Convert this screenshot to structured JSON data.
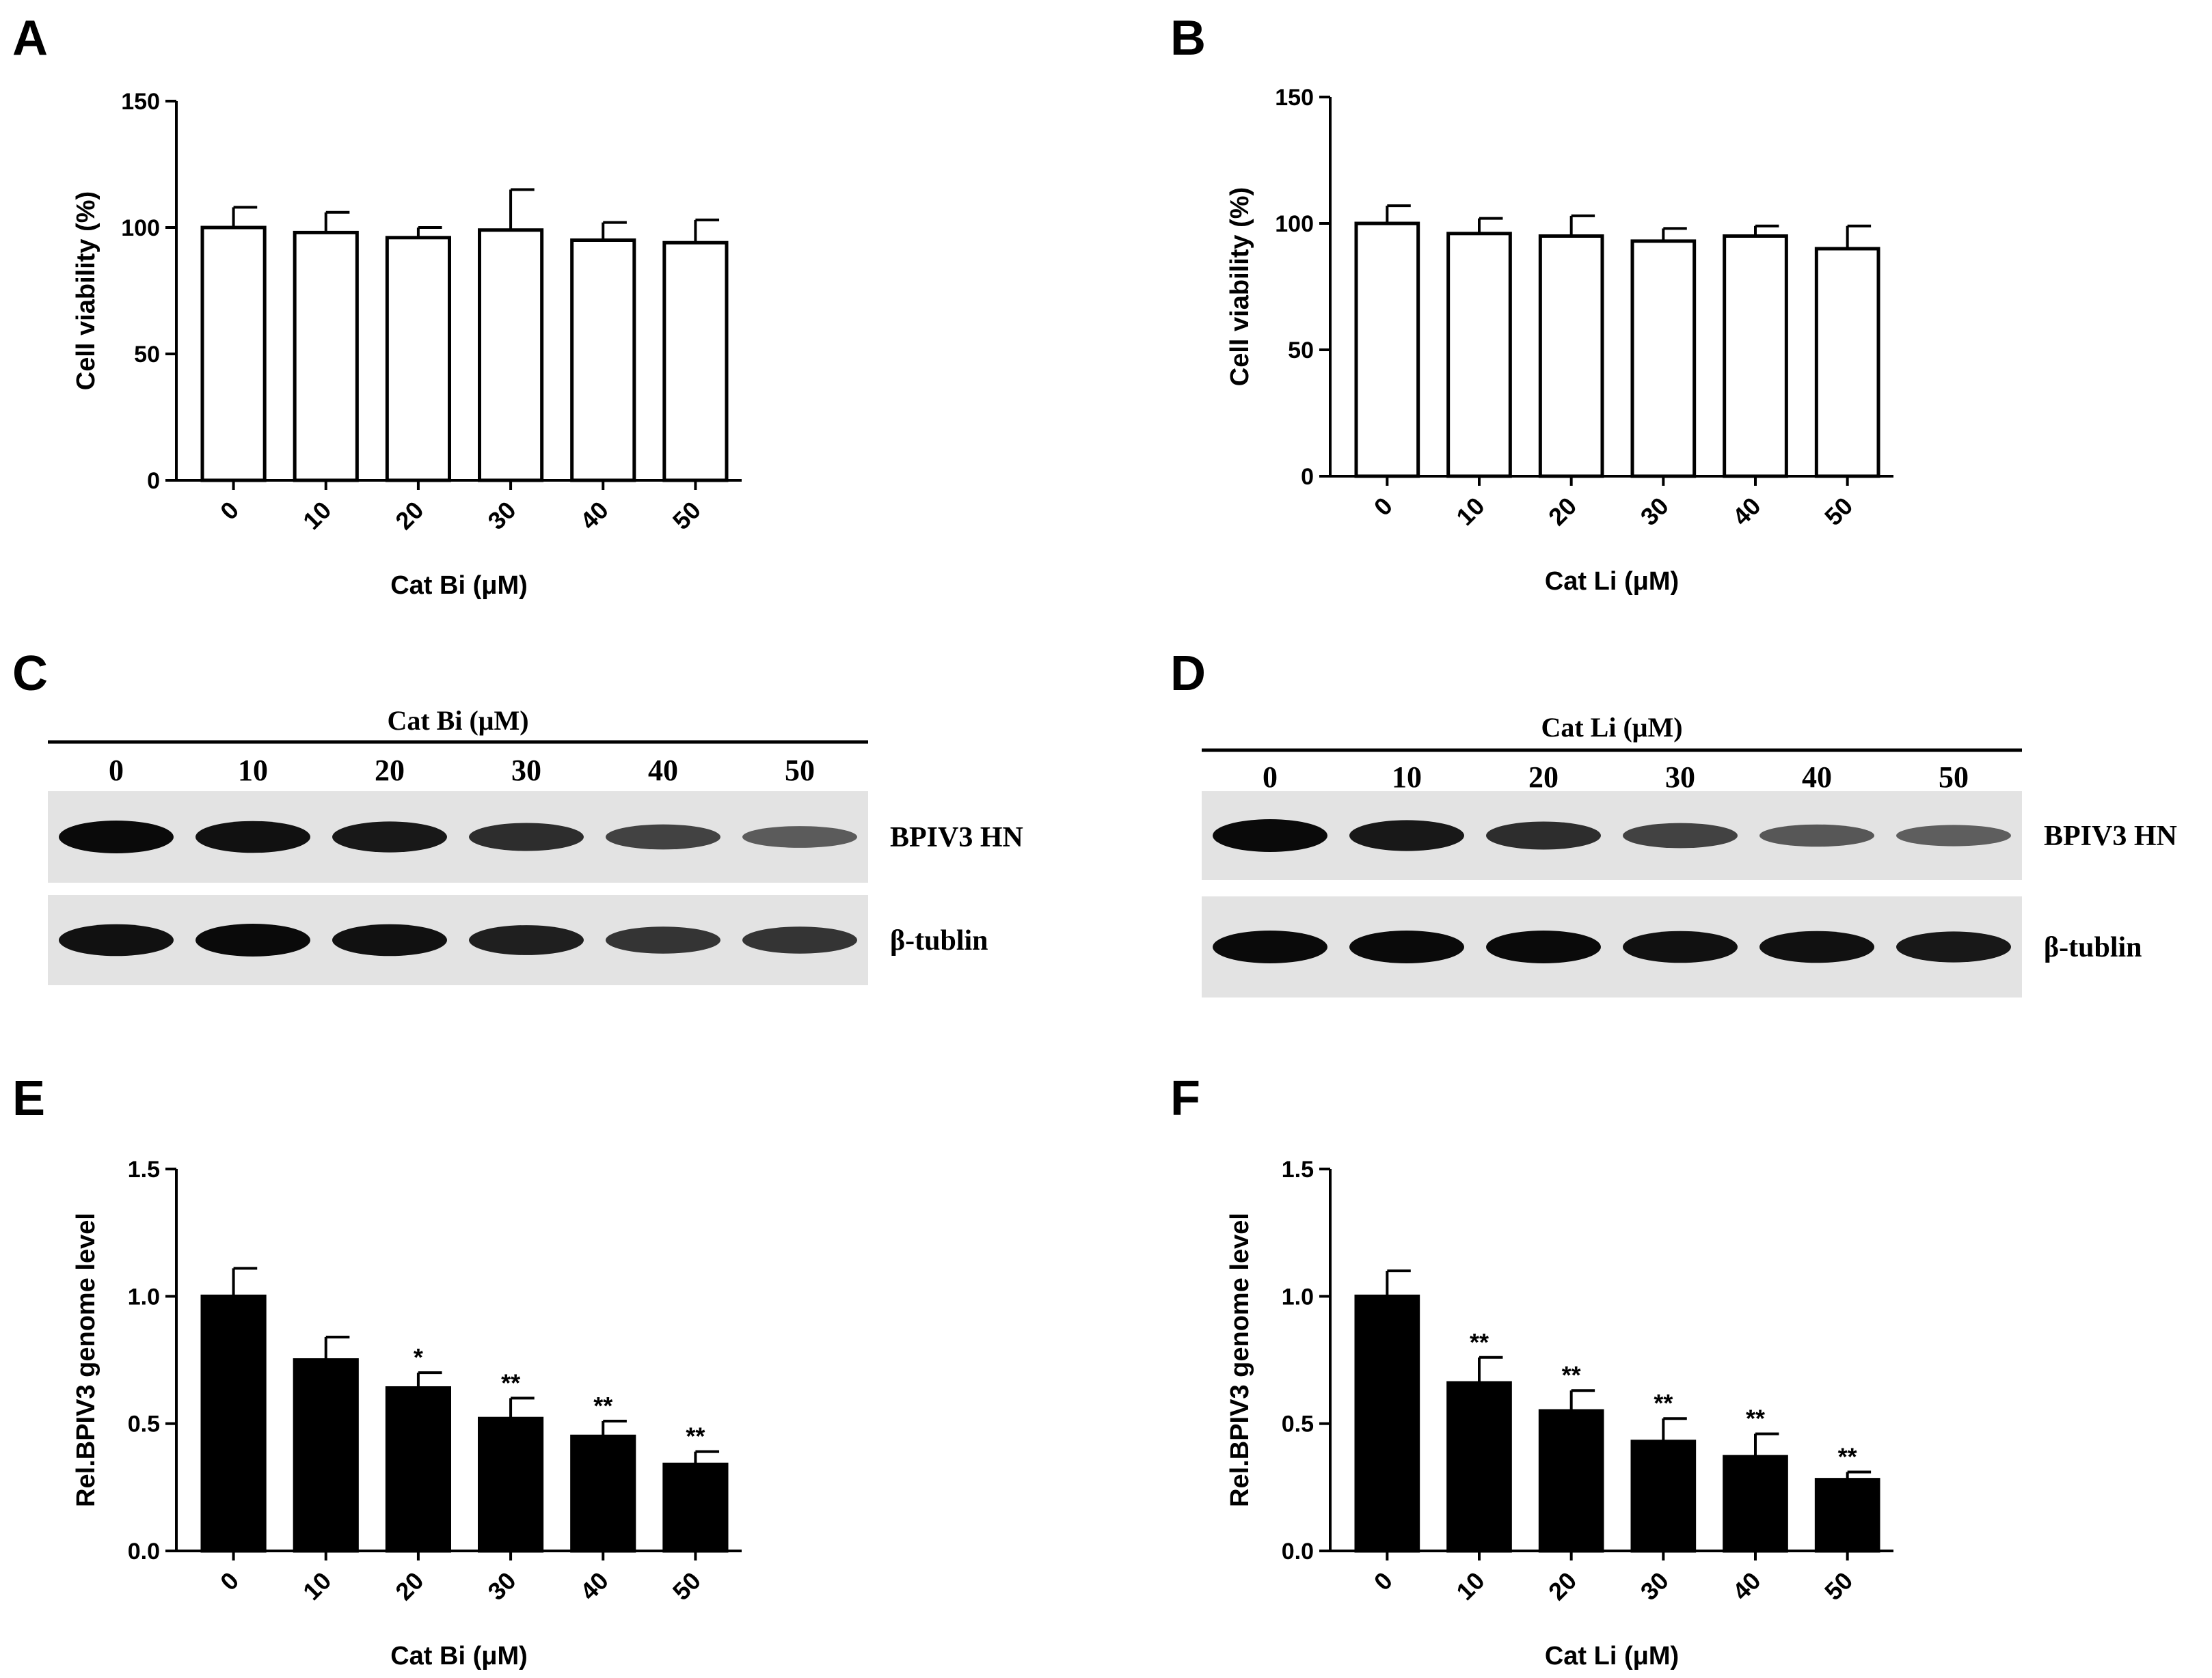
{
  "figure": {
    "panel_letters": [
      "A",
      "B",
      "C",
      "D",
      "E",
      "F"
    ]
  },
  "chart_data": [
    {
      "panel": "A",
      "type": "bar",
      "categories": [
        "0",
        "10",
        "20",
        "30",
        "40",
        "50"
      ],
      "values": [
        100,
        98,
        96,
        99,
        95,
        94
      ],
      "errors": [
        8,
        8,
        4,
        16,
        7,
        9
      ],
      "xlabel": "Cat Bi (μM)",
      "ylabel": "Cell viability (%)",
      "ylim": [
        0,
        150
      ],
      "yticks": [
        "0",
        "50",
        "100",
        "150"
      ],
      "bar_fill": "#ffffff",
      "significance": [
        "",
        "",
        "",
        "",
        "",
        ""
      ]
    },
    {
      "panel": "B",
      "type": "bar",
      "categories": [
        "0",
        "10",
        "20",
        "30",
        "40",
        "50"
      ],
      "values": [
        100,
        96,
        95,
        93,
        95,
        90
      ],
      "errors": [
        7,
        6,
        8,
        5,
        4,
        9
      ],
      "xlabel": "Cat Li (μM)",
      "ylabel": "Cell viability (%)",
      "ylim": [
        0,
        150
      ],
      "yticks": [
        "0",
        "50",
        "100",
        "150"
      ],
      "bar_fill": "#ffffff",
      "significance": [
        "",
        "",
        "",
        "",
        "",
        ""
      ]
    },
    {
      "panel": "E",
      "type": "bar",
      "categories": [
        "0",
        "10",
        "20",
        "30",
        "40",
        "50"
      ],
      "values": [
        1.0,
        0.75,
        0.64,
        0.52,
        0.45,
        0.34
      ],
      "errors": [
        0.11,
        0.09,
        0.06,
        0.08,
        0.06,
        0.05
      ],
      "xlabel": "Cat Bi (μM)",
      "ylabel": "Rel.BPIV3 genome level",
      "ylim": [
        0,
        1.5
      ],
      "yticks": [
        "0.0",
        "0.5",
        "1.0",
        "1.5"
      ],
      "bar_fill": "#000000",
      "significance": [
        "",
        "",
        "*",
        "**",
        "**",
        "**"
      ]
    },
    {
      "panel": "F",
      "type": "bar",
      "categories": [
        "0",
        "10",
        "20",
        "30",
        "40",
        "50"
      ],
      "values": [
        1.0,
        0.66,
        0.55,
        0.43,
        0.37,
        0.28
      ],
      "errors": [
        0.1,
        0.1,
        0.08,
        0.09,
        0.09,
        0.03
      ],
      "xlabel": "Cat Li (μM)",
      "ylabel": "Rel.BPIV3 genome level",
      "ylim": [
        0,
        1.5
      ],
      "yticks": [
        "0.0",
        "0.5",
        "1.0",
        "1.5"
      ],
      "bar_fill": "#000000",
      "significance": [
        "",
        "**",
        "**",
        "**",
        "**",
        "**"
      ]
    }
  ],
  "blots": [
    {
      "panel": "C",
      "header": "Cat Bi (μM)",
      "lanes": [
        "0",
        "10",
        "20",
        "30",
        "40",
        "50"
      ],
      "rows": [
        {
          "label": "BPIV3  HN",
          "intensities": [
            1.0,
            0.95,
            0.9,
            0.75,
            0.6,
            0.42
          ]
        },
        {
          "label": "β-tublin",
          "intensities": [
            0.95,
            1.0,
            0.95,
            0.85,
            0.7,
            0.7
          ]
        }
      ]
    },
    {
      "panel": "D",
      "header": "Cat Li (μM)",
      "lanes": [
        "0",
        "10",
        "20",
        "30",
        "40",
        "50"
      ],
      "rows": [
        {
          "label": "BPIV3  HN",
          "intensities": [
            1.0,
            0.9,
            0.75,
            0.6,
            0.45,
            0.4
          ]
        },
        {
          "label": "β-tublin",
          "intensities": [
            1.0,
            1.0,
            1.0,
            0.95,
            0.95,
            0.9
          ]
        }
      ]
    }
  ]
}
